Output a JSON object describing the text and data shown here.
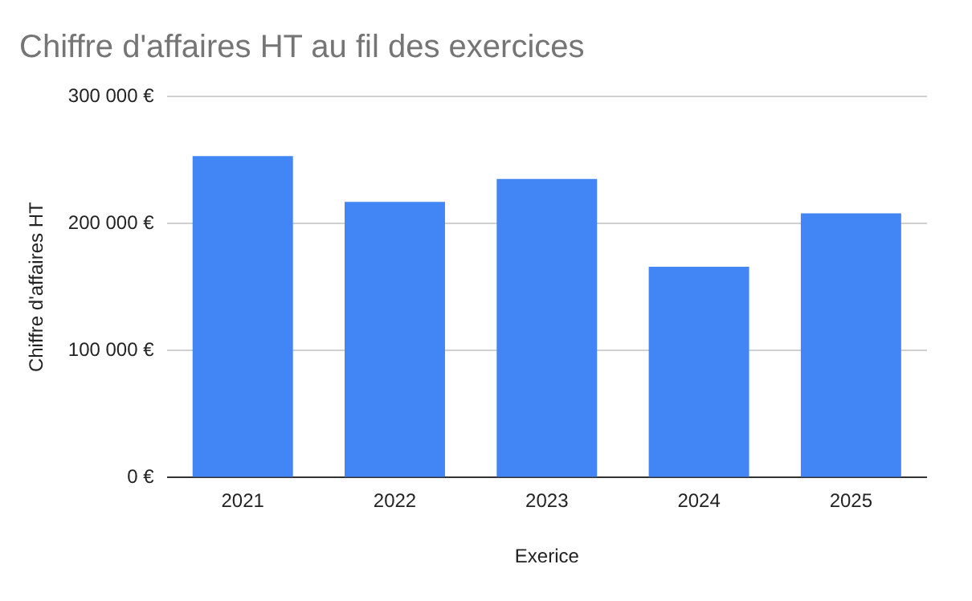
{
  "chart_data": {
    "type": "bar",
    "title": "Chiffre d'affaires HT au fil des exercices",
    "xlabel": "Exerice",
    "ylabel": "Chiffre d'affaires HT",
    "categories": [
      "2021",
      "2022",
      "2023",
      "2024",
      "2025"
    ],
    "values": [
      253000,
      217000,
      235000,
      166000,
      208000
    ],
    "color": "#4285f4",
    "ylim": [
      0,
      300000
    ],
    "yticks": [
      {
        "value": 0,
        "label": "0 €"
      },
      {
        "value": 100000,
        "label": "100 000 €"
      },
      {
        "value": 200000,
        "label": "200 000 €"
      },
      {
        "value": 300000,
        "label": "300 000 €"
      }
    ],
    "grid": "y",
    "legend": false
  }
}
